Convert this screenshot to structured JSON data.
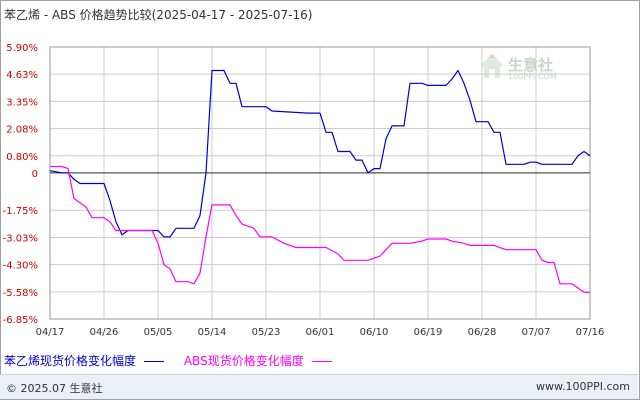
{
  "title": "苯乙烯 - ABS 价格趋势比较(2025-04-17 - 2025-07-16)",
  "watermark": {
    "text": "生意社",
    "url": "100PPI.COM"
  },
  "footer": {
    "copyright": "© 2025.07 生意社",
    "site": "www.100PPI.com"
  },
  "colors": {
    "series1": "#0000cc",
    "series2": "#ff00ff",
    "grid": "#cccccc",
    "text": "#cc0000",
    "xtext": "#333333"
  },
  "chart_data": {
    "type": "line",
    "ylim": [
      -6.85,
      5.9
    ],
    "yticks": [
      5.9,
      4.63,
      3.35,
      2.08,
      0.8,
      0,
      -1.75,
      -3.03,
      -4.3,
      -5.58,
      -6.85
    ],
    "ytick_labels": [
      "5.90%",
      "4.63%",
      "3.35%",
      "2.08%",
      "0.80%",
      "0",
      "-1.75%",
      "-3.03%",
      "-4.30%",
      "-5.58%",
      "-6.85%"
    ],
    "x_range": [
      "2025-04-17",
      "2025-07-16"
    ],
    "x_ticks": [
      "2025-04-17",
      "2025-04-26",
      "2025-05-05",
      "2025-05-14",
      "2025-05-23",
      "2025-06-01",
      "2025-06-10",
      "2025-06-19",
      "2025-06-28",
      "2025-07-07",
      "2025-07-16"
    ],
    "x_tick_labels": [
      "04/17",
      "04/26",
      "05/05",
      "05/14",
      "05/23",
      "06/01",
      "06/10",
      "06/19",
      "06/28",
      "07/07",
      "07/16"
    ],
    "grid": true,
    "series": [
      {
        "name": "苯乙烯现货价格变化幅度",
        "color": "#0000cc",
        "points": [
          [
            "2025-04-17",
            0.1
          ],
          [
            "2025-04-19",
            0.0
          ],
          [
            "2025-04-20",
            0.0
          ],
          [
            "2025-04-21",
            -0.3
          ],
          [
            "2025-04-22",
            -0.5
          ],
          [
            "2025-04-24",
            -0.5
          ],
          [
            "2025-04-25",
            -0.5
          ],
          [
            "2025-04-26",
            -0.5
          ],
          [
            "2025-04-27",
            -1.3
          ],
          [
            "2025-04-28",
            -2.3
          ],
          [
            "2025-04-29",
            -2.9
          ],
          [
            "2025-04-30",
            -2.7
          ],
          [
            "2025-05-01",
            -2.7
          ],
          [
            "2025-05-05",
            -2.7
          ],
          [
            "2025-05-06",
            -3.0
          ],
          [
            "2025-05-07",
            -3.0
          ],
          [
            "2025-05-08",
            -2.6
          ],
          [
            "2025-05-11",
            -2.6
          ],
          [
            "2025-05-12",
            -2.0
          ],
          [
            "2025-05-13",
            0.0
          ],
          [
            "2025-05-14",
            4.8
          ],
          [
            "2025-05-16",
            4.8
          ],
          [
            "2025-05-17",
            4.2
          ],
          [
            "2025-05-18",
            4.2
          ],
          [
            "2025-05-19",
            3.1
          ],
          [
            "2025-05-22",
            3.1
          ],
          [
            "2025-05-23",
            3.1
          ],
          [
            "2025-05-24",
            2.9
          ],
          [
            "2025-05-30",
            2.8
          ],
          [
            "2025-06-01",
            2.8
          ],
          [
            "2025-06-02",
            1.9
          ],
          [
            "2025-06-03",
            1.9
          ],
          [
            "2025-06-04",
            1.0
          ],
          [
            "2025-06-06",
            1.0
          ],
          [
            "2025-06-07",
            0.6
          ],
          [
            "2025-06-08",
            0.6
          ],
          [
            "2025-06-09",
            0.0
          ],
          [
            "2025-06-10",
            0.2
          ],
          [
            "2025-06-11",
            0.2
          ],
          [
            "2025-06-12",
            1.6
          ],
          [
            "2025-06-13",
            2.2
          ],
          [
            "2025-06-15",
            2.2
          ],
          [
            "2025-06-16",
            4.2
          ],
          [
            "2025-06-18",
            4.2
          ],
          [
            "2025-06-19",
            4.1
          ],
          [
            "2025-06-22",
            4.1
          ],
          [
            "2025-06-23",
            4.4
          ],
          [
            "2025-06-24",
            4.8
          ],
          [
            "2025-06-25",
            4.2
          ],
          [
            "2025-06-26",
            3.4
          ],
          [
            "2025-06-27",
            2.4
          ],
          [
            "2025-06-28",
            2.4
          ],
          [
            "2025-06-29",
            2.4
          ],
          [
            "2025-06-30",
            1.9
          ],
          [
            "2025-07-01",
            1.9
          ],
          [
            "2025-07-02",
            0.4
          ],
          [
            "2025-07-05",
            0.4
          ],
          [
            "2025-07-06",
            0.5
          ],
          [
            "2025-07-07",
            0.5
          ],
          [
            "2025-07-08",
            0.4
          ],
          [
            "2025-07-13",
            0.4
          ],
          [
            "2025-07-14",
            0.8
          ],
          [
            "2025-07-15",
            1.0
          ],
          [
            "2025-07-16",
            0.8
          ]
        ]
      },
      {
        "name": "ABS现货价格变化幅度",
        "color": "#ff00ff",
        "points": [
          [
            "2025-04-17",
            0.3
          ],
          [
            "2025-04-19",
            0.3
          ],
          [
            "2025-04-20",
            0.2
          ],
          [
            "2025-04-21",
            -1.2
          ],
          [
            "2025-04-22",
            -1.4
          ],
          [
            "2025-04-23",
            -1.6
          ],
          [
            "2025-04-24",
            -2.1
          ],
          [
            "2025-04-26",
            -2.1
          ],
          [
            "2025-04-27",
            -2.3
          ],
          [
            "2025-04-28",
            -2.7
          ],
          [
            "2025-05-04",
            -2.7
          ],
          [
            "2025-05-05",
            -3.3
          ],
          [
            "2025-05-06",
            -4.3
          ],
          [
            "2025-05-07",
            -4.5
          ],
          [
            "2025-05-08",
            -5.1
          ],
          [
            "2025-05-10",
            -5.1
          ],
          [
            "2025-05-11",
            -5.2
          ],
          [
            "2025-05-12",
            -4.7
          ],
          [
            "2025-05-13",
            -3.0
          ],
          [
            "2025-05-14",
            -1.5
          ],
          [
            "2025-05-17",
            -1.5
          ],
          [
            "2025-05-18",
            -2.0
          ],
          [
            "2025-05-19",
            -2.4
          ],
          [
            "2025-05-21",
            -2.6
          ],
          [
            "2025-05-22",
            -3.0
          ],
          [
            "2025-05-24",
            -3.0
          ],
          [
            "2025-05-26",
            -3.3
          ],
          [
            "2025-05-28",
            -3.5
          ],
          [
            "2025-06-02",
            -3.5
          ],
          [
            "2025-06-04",
            -3.8
          ],
          [
            "2025-06-05",
            -4.1
          ],
          [
            "2025-06-09",
            -4.1
          ],
          [
            "2025-06-10",
            -4.0
          ],
          [
            "2025-06-11",
            -3.9
          ],
          [
            "2025-06-12",
            -3.6
          ],
          [
            "2025-06-13",
            -3.3
          ],
          [
            "2025-06-16",
            -3.3
          ],
          [
            "2025-06-18",
            -3.2
          ],
          [
            "2025-06-19",
            -3.1
          ],
          [
            "2025-06-22",
            -3.1
          ],
          [
            "2025-06-23",
            -3.2
          ],
          [
            "2025-06-25",
            -3.3
          ],
          [
            "2025-06-26",
            -3.4
          ],
          [
            "2025-06-30",
            -3.4
          ],
          [
            "2025-07-02",
            -3.6
          ],
          [
            "2025-07-07",
            -3.6
          ],
          [
            "2025-07-08",
            -4.1
          ],
          [
            "2025-07-09",
            -4.2
          ],
          [
            "2025-07-10",
            -4.2
          ],
          [
            "2025-07-11",
            -5.2
          ],
          [
            "2025-07-12",
            -5.2
          ],
          [
            "2025-07-13",
            -5.2
          ],
          [
            "2025-07-15",
            -5.6
          ],
          [
            "2025-07-16",
            -5.6
          ]
        ]
      }
    ]
  }
}
